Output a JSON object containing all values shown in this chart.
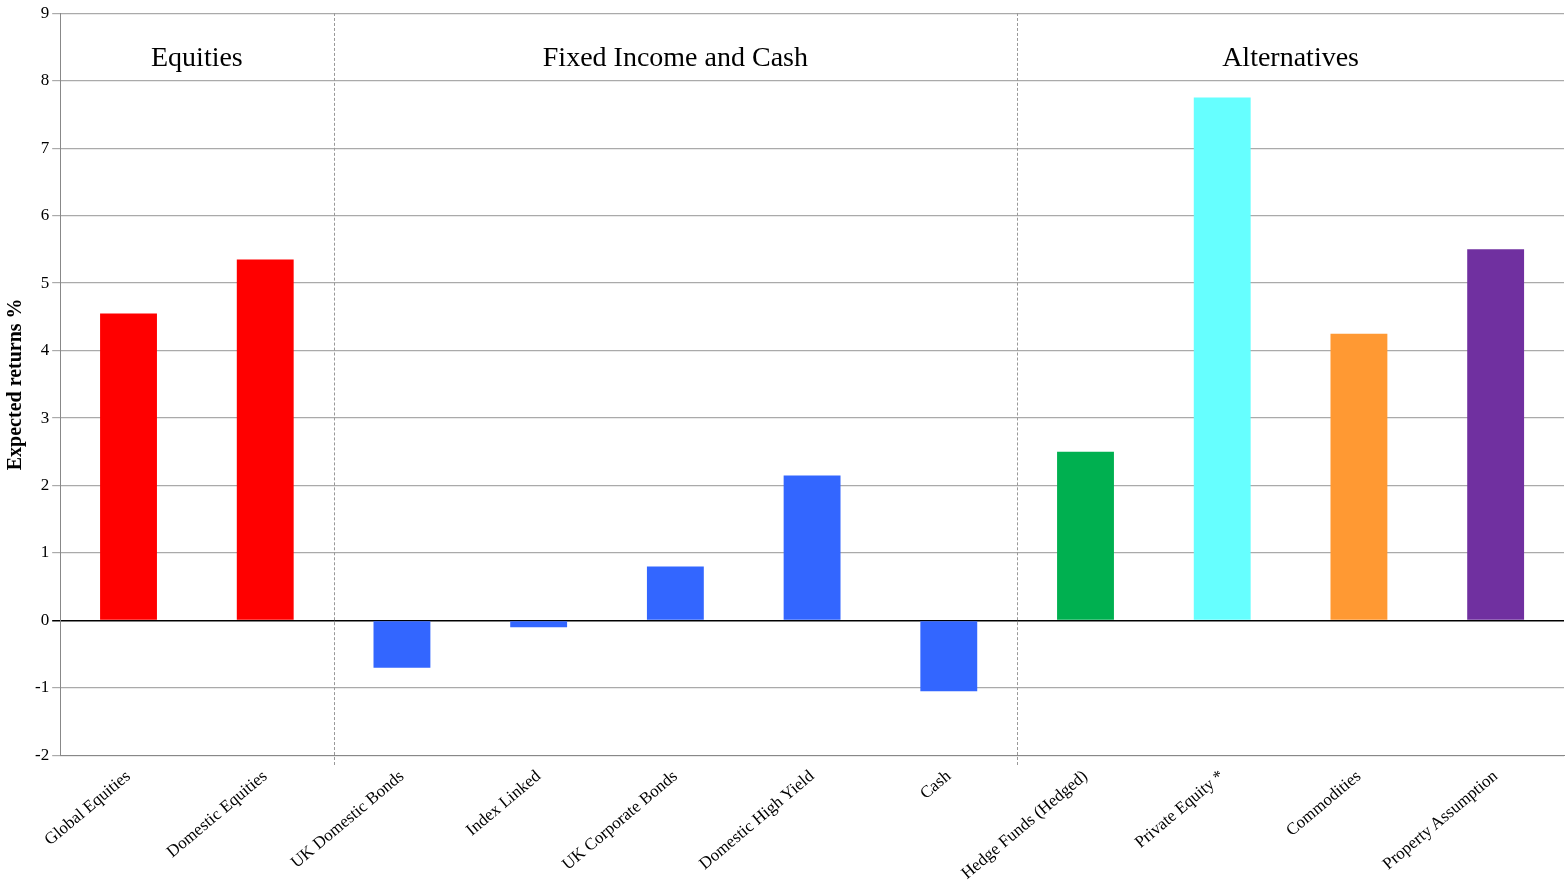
{
  "chart_data": {
    "type": "bar",
    "ylabel": "Expected returns %",
    "categories": [
      "Global Equities",
      "Domestic Equities",
      "UK Domestic Bonds",
      "Index Linked",
      "UK Corporate Bonds",
      "Domestic High Yield",
      "Cash",
      "Hedge Funds (Hedged)",
      "Private Equity *",
      "Commodities",
      "Property Assumption"
    ],
    "values": [
      4.55,
      5.35,
      -0.7,
      -0.1,
      0.8,
      2.15,
      -1.05,
      2.5,
      7.75,
      4.25,
      5.5
    ],
    "colors": [
      "#ff0000",
      "#ff0000",
      "#3366ff",
      "#3366ff",
      "#3366ff",
      "#3366ff",
      "#3366ff",
      "#00b050",
      "#66ffff",
      "#ff9933",
      "#7030a0"
    ],
    "ylim": [
      -2,
      9
    ],
    "yticks": [
      -2,
      -1,
      0,
      1,
      2,
      3,
      4,
      5,
      6,
      7,
      8,
      9
    ],
    "grid": "y",
    "annotations": [
      "Equities",
      "Fixed Income and Cash",
      "Alternatives"
    ]
  }
}
